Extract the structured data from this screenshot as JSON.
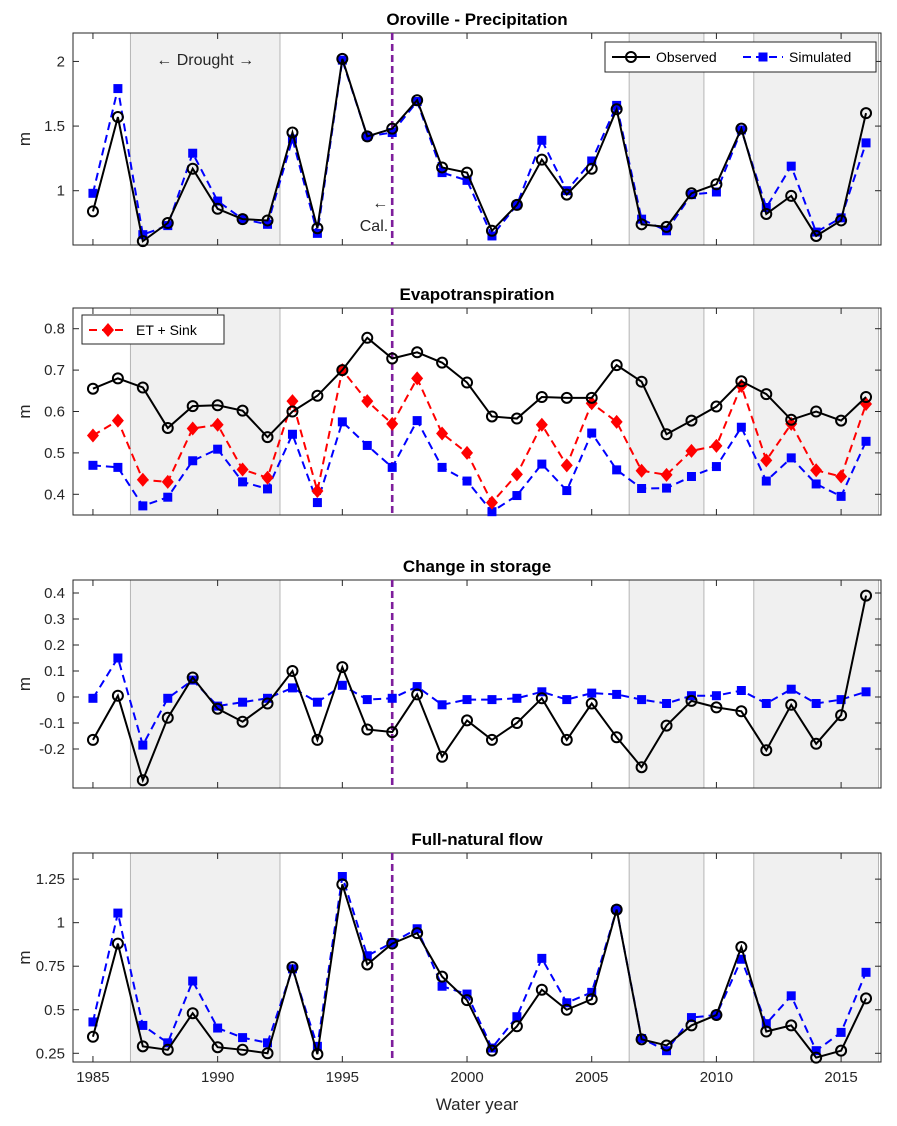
{
  "xlabel": "Water year",
  "x_ticks": [
    1985,
    1990,
    1995,
    2000,
    2005,
    2010,
    2015
  ],
  "calibration_line_year": 1997,
  "drought_periods": [
    [
      1986.5,
      1992.5
    ],
    [
      2006.5,
      2009.5
    ],
    [
      2011.5,
      2016.5
    ]
  ],
  "legend_labels": {
    "observed": "Observed",
    "simulated": "Simulated",
    "et_sink": "ET + Sink"
  },
  "annotations": {
    "drought": "← Drought →",
    "cal_arrow": "←",
    "cal": "Cal."
  },
  "colors": {
    "observed": "#000000",
    "simulated": "#0000ff",
    "et_sink": "#ff0000",
    "drought_shade": "#f0f0f0",
    "cal_line": "#7e1e9c"
  },
  "chart_data": [
    {
      "type": "line",
      "title": "Oroville - Precipitation",
      "ylabel": "m",
      "ylim": [
        0.58,
        2.22
      ],
      "yticks": [
        1,
        1.5,
        2
      ],
      "ytick_labels": [
        "1",
        "1.5",
        "2"
      ],
      "x": [
        1985,
        1986,
        1987,
        1988,
        1989,
        1990,
        1991,
        1992,
        1993,
        1994,
        1995,
        1996,
        1997,
        1998,
        1999,
        2000,
        2001,
        2002,
        2003,
        2004,
        2005,
        2006,
        2007,
        2008,
        2009,
        2010,
        2011,
        2012,
        2013,
        2014,
        2015,
        2016
      ],
      "series": [
        {
          "name": "Observed",
          "values": [
            0.84,
            1.57,
            0.61,
            0.75,
            1.17,
            0.86,
            0.78,
            0.77,
            1.45,
            0.71,
            2.02,
            1.42,
            1.48,
            1.7,
            1.18,
            1.14,
            0.69,
            0.89,
            1.24,
            0.97,
            1.17,
            1.63,
            0.74,
            0.72,
            0.98,
            1.05,
            1.48,
            0.82,
            0.96,
            0.65,
            0.77,
            1.6
          ]
        },
        {
          "name": "Simulated",
          "values": [
            0.98,
            1.79,
            0.66,
            0.73,
            1.29,
            0.92,
            0.78,
            0.74,
            1.4,
            0.67,
            2.01,
            1.42,
            1.45,
            1.69,
            1.14,
            1.08,
            0.65,
            0.89,
            1.39,
            1.0,
            1.23,
            1.66,
            0.78,
            0.69,
            0.97,
            0.99,
            1.47,
            0.87,
            1.19,
            0.68,
            0.79,
            1.37
          ]
        }
      ]
    },
    {
      "type": "line",
      "title": "Evapotranspiration",
      "ylabel": "m",
      "ylim": [
        0.35,
        0.85
      ],
      "yticks": [
        0.4,
        0.5,
        0.6,
        0.7,
        0.8
      ],
      "ytick_labels": [
        "0.4",
        "0.5",
        "0.6",
        "0.7",
        "0.8"
      ],
      "x": [
        1985,
        1986,
        1987,
        1988,
        1989,
        1990,
        1991,
        1992,
        1993,
        1994,
        1995,
        1996,
        1997,
        1998,
        1999,
        2000,
        2001,
        2002,
        2003,
        2004,
        2005,
        2006,
        2007,
        2008,
        2009,
        2010,
        2011,
        2012,
        2013,
        2014,
        2015,
        2016
      ],
      "series": [
        {
          "name": "Observed",
          "values": [
            0.655,
            0.68,
            0.658,
            0.56,
            0.613,
            0.615,
            0.602,
            0.538,
            0.6,
            0.638,
            0.7,
            0.778,
            0.728,
            0.743,
            0.718,
            0.67,
            0.588,
            0.583,
            0.635,
            0.633,
            0.633,
            0.712,
            0.672,
            0.545,
            0.578,
            0.612,
            0.673,
            0.642,
            0.58,
            0.6,
            0.578,
            0.635
          ]
        },
        {
          "name": "Simulated",
          "values": [
            0.47,
            0.465,
            0.372,
            0.393,
            0.481,
            0.509,
            0.43,
            0.413,
            0.545,
            0.38,
            0.575,
            0.518,
            0.465,
            0.578,
            0.465,
            0.432,
            0.358,
            0.397,
            0.473,
            0.409,
            0.548,
            0.459,
            0.414,
            0.415,
            0.443,
            0.467,
            0.562,
            0.432,
            0.488,
            0.425,
            0.395,
            0.528
          ]
        },
        {
          "name": "ET + Sink",
          "values": [
            0.542,
            0.578,
            0.435,
            0.43,
            0.559,
            0.568,
            0.46,
            0.44,
            0.625,
            0.408,
            0.7,
            0.625,
            0.57,
            0.68,
            0.547,
            0.5,
            0.38,
            0.448,
            0.568,
            0.47,
            0.62,
            0.575,
            0.457,
            0.447,
            0.505,
            0.517,
            0.662,
            0.482,
            0.57,
            0.458,
            0.443,
            0.618
          ]
        }
      ]
    },
    {
      "type": "line",
      "title": "Change in storage",
      "ylabel": "m",
      "ylim": [
        -0.35,
        0.45
      ],
      "yticks": [
        -0.2,
        -0.1,
        0,
        0.1,
        0.2,
        0.3,
        0.4
      ],
      "ytick_labels": [
        "-0.2",
        "-0.1",
        "0",
        "0.1",
        "0.2",
        "0.3",
        "0.4"
      ],
      "x": [
        1985,
        1986,
        1987,
        1988,
        1989,
        1990,
        1991,
        1992,
        1993,
        1994,
        1995,
        1996,
        1997,
        1998,
        1999,
        2000,
        2001,
        2002,
        2003,
        2004,
        2005,
        2006,
        2007,
        2008,
        2009,
        2010,
        2011,
        2012,
        2013,
        2014,
        2015,
        2016
      ],
      "series": [
        {
          "name": "Observed",
          "values": [
            -0.165,
            0.005,
            -0.32,
            -0.08,
            0.075,
            -0.045,
            -0.095,
            -0.025,
            0.1,
            -0.165,
            0.115,
            -0.125,
            -0.135,
            0.01,
            -0.23,
            -0.09,
            -0.165,
            -0.1,
            -0.005,
            -0.165,
            -0.025,
            -0.155,
            -0.27,
            -0.11,
            -0.015,
            -0.04,
            -0.055,
            -0.205,
            -0.03,
            -0.18,
            -0.07,
            0.39
          ]
        },
        {
          "name": "Simulated",
          "values": [
            -0.005,
            0.15,
            -0.185,
            -0.005,
            0.065,
            -0.035,
            -0.02,
            -0.005,
            0.035,
            -0.02,
            0.045,
            -0.01,
            -0.005,
            0.04,
            -0.03,
            -0.01,
            -0.01,
            -0.005,
            0.02,
            -0.01,
            0.015,
            0.01,
            -0.01,
            -0.025,
            0.005,
            0.005,
            0.025,
            -0.025,
            0.03,
            -0.025,
            -0.01,
            0.02
          ]
        }
      ]
    },
    {
      "type": "line",
      "title": "Full-natural flow",
      "ylabel": "m",
      "ylim": [
        0.2,
        1.4
      ],
      "yticks": [
        0.25,
        0.5,
        0.75,
        1,
        1.25
      ],
      "ytick_labels": [
        "0.25",
        "0.5",
        "0.75",
        "1",
        "1.25"
      ],
      "x": [
        1985,
        1986,
        1987,
        1988,
        1989,
        1990,
        1991,
        1992,
        1993,
        1994,
        1995,
        1996,
        1997,
        1998,
        1999,
        2000,
        2001,
        2002,
        2003,
        2004,
        2005,
        2006,
        2007,
        2008,
        2009,
        2010,
        2011,
        2012,
        2013,
        2014,
        2015,
        2016
      ],
      "series": [
        {
          "name": "Observed",
          "values": [
            0.345,
            0.88,
            0.29,
            0.27,
            0.48,
            0.285,
            0.27,
            0.25,
            0.745,
            0.245,
            1.22,
            0.76,
            0.88,
            0.94,
            0.69,
            0.555,
            0.265,
            0.405,
            0.615,
            0.5,
            0.56,
            1.075,
            0.33,
            0.295,
            0.41,
            0.47,
            0.86,
            0.375,
            0.41,
            0.225,
            0.265,
            0.565
          ]
        },
        {
          "name": "Simulated",
          "values": [
            0.43,
            1.055,
            0.41,
            0.31,
            0.665,
            0.395,
            0.34,
            0.31,
            0.735,
            0.29,
            1.265,
            0.81,
            0.885,
            0.965,
            0.635,
            0.59,
            0.28,
            0.46,
            0.795,
            0.54,
            0.6,
            1.075,
            0.335,
            0.265,
            0.455,
            0.47,
            0.79,
            0.42,
            0.58,
            0.265,
            0.37,
            0.715
          ]
        }
      ]
    }
  ]
}
